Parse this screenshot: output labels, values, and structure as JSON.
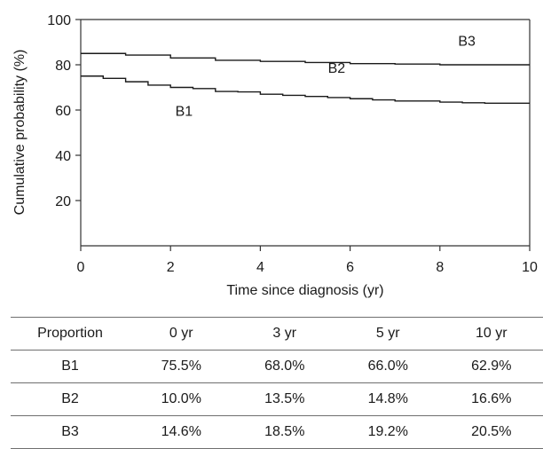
{
  "chart_data": {
    "type": "line",
    "xlabel": "Time since diagnosis (yr)",
    "ylabel": "Cumulative probability (%)",
    "xlim": [
      0,
      10
    ],
    "ylim": [
      0,
      100
    ],
    "x_ticks": [
      0,
      2,
      4,
      6,
      8,
      10
    ],
    "y_ticks": [
      20,
      40,
      60,
      80,
      100
    ],
    "grid": false,
    "series": [
      {
        "name": "B1",
        "label_position": [
          2.3,
          57.5
        ],
        "points": [
          [
            0,
            75
          ],
          [
            0.5,
            74
          ],
          [
            1,
            72.5
          ],
          [
            1.5,
            71
          ],
          [
            2,
            70
          ],
          [
            2.5,
            69.5
          ],
          [
            3,
            68.2
          ],
          [
            3.5,
            68
          ],
          [
            4,
            67
          ],
          [
            4.5,
            66.5
          ],
          [
            5,
            66
          ],
          [
            5.5,
            65.5
          ],
          [
            6,
            65
          ],
          [
            6.5,
            64.5
          ],
          [
            7,
            64
          ],
          [
            7.5,
            64
          ],
          [
            8,
            63.5
          ],
          [
            8.5,
            63.2
          ],
          [
            9,
            63
          ],
          [
            10,
            63
          ]
        ]
      },
      {
        "name": "B2",
        "label_position": [
          5.7,
          76.5
        ],
        "points": [
          [
            0,
            85
          ],
          [
            0.5,
            85
          ],
          [
            1,
            84.3
          ],
          [
            2,
            83
          ],
          [
            3,
            82
          ],
          [
            4,
            81.5
          ],
          [
            5,
            81
          ],
          [
            6,
            80.5
          ],
          [
            7,
            80.3
          ],
          [
            8,
            80
          ],
          [
            9,
            80
          ],
          [
            10,
            80
          ]
        ]
      },
      {
        "name": "B3",
        "label_position": [
          8.6,
          88.5
        ],
        "points": []
      }
    ]
  },
  "table": {
    "headers": [
      "Proportion",
      "0 yr",
      "3 yr",
      "5 yr",
      "10 yr"
    ],
    "rows": [
      [
        "B1",
        "75.5%",
        "68.0%",
        "66.0%",
        "62.9%"
      ],
      [
        "B2",
        "10.0%",
        "13.5%",
        "14.8%",
        "16.6%"
      ],
      [
        "B3",
        "14.6%",
        "18.5%",
        "19.2%",
        "20.5%"
      ]
    ]
  }
}
